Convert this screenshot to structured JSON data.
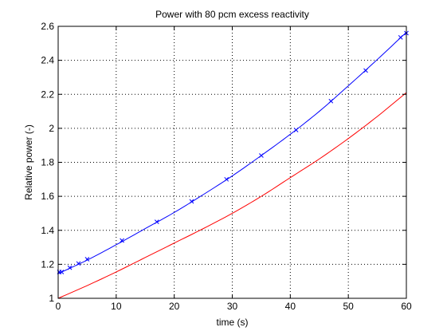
{
  "chart_data": {
    "type": "line",
    "title": "Power with 80 pcm excess reactivity",
    "xlabel": "time (s)",
    "ylabel": "Relative power (-)",
    "xlim": [
      0,
      60
    ],
    "ylim": [
      1,
      2.6
    ],
    "xticks": [
      0,
      10,
      20,
      30,
      40,
      50,
      60
    ],
    "yticks": [
      1,
      1.2,
      1.4,
      1.6,
      1.8,
      2,
      2.2,
      2.4,
      2.6
    ],
    "grid": true,
    "series": [
      {
        "color": "#0000ff",
        "style": "line",
        "x": [
          0,
          5,
          10,
          15,
          20,
          25,
          30,
          35,
          40,
          45,
          50,
          55,
          60
        ],
        "y": [
          1.145,
          1.225,
          1.315,
          1.41,
          1.505,
          1.61,
          1.72,
          1.84,
          1.965,
          2.1,
          2.25,
          2.405,
          2.565
        ]
      },
      {
        "color": "#0000ff",
        "style": "markers",
        "marker": "x",
        "x": [
          0.2,
          0.6,
          2,
          3.5,
          5,
          11,
          17,
          23,
          29,
          35,
          41,
          47,
          53,
          59,
          60
        ],
        "y": [
          1.155,
          1.155,
          1.18,
          1.205,
          1.23,
          1.34,
          1.45,
          1.57,
          1.7,
          1.84,
          1.99,
          2.16,
          2.34,
          2.535,
          2.56
        ]
      },
      {
        "color": "#ff0000",
        "style": "line",
        "x": [
          0,
          5,
          10,
          15,
          20,
          25,
          30,
          35,
          40,
          45,
          50,
          55,
          60
        ],
        "y": [
          1.0,
          1.075,
          1.155,
          1.24,
          1.325,
          1.41,
          1.5,
          1.6,
          1.71,
          1.82,
          1.94,
          2.07,
          2.21
        ]
      }
    ]
  }
}
